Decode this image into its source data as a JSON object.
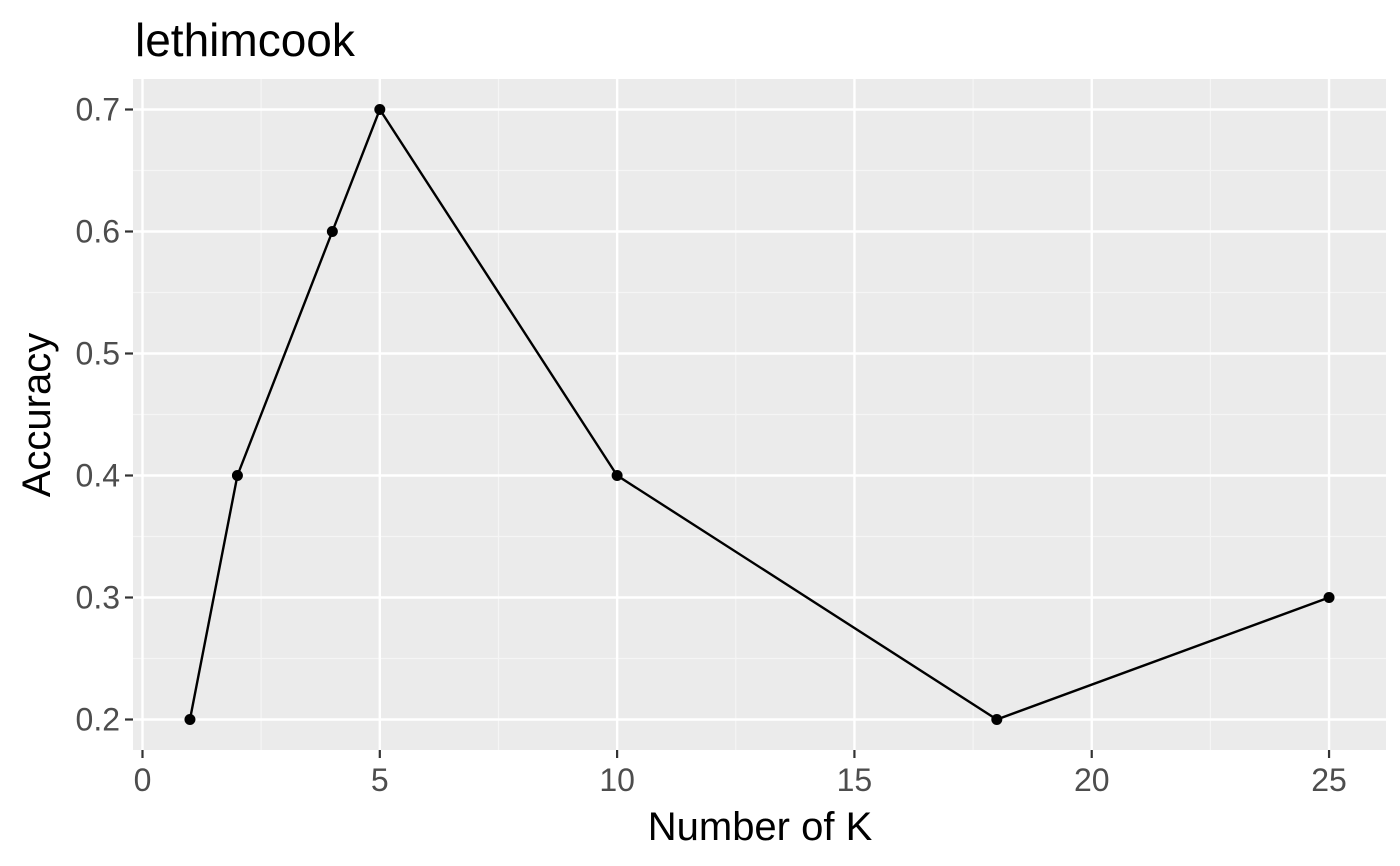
{
  "chart_data": {
    "type": "line",
    "title": "lethimcook",
    "xlabel": "Number of K",
    "ylabel": "Accuracy",
    "x": [
      1,
      2,
      4,
      5,
      10,
      18,
      25
    ],
    "series": [
      {
        "values": [
          0.2,
          0.4,
          0.6,
          0.7,
          0.4,
          0.2,
          0.3
        ]
      }
    ],
    "xlim": [
      -0.2,
      26.2
    ],
    "ylim": [
      0.175,
      0.725
    ],
    "x_ticks": [
      0,
      5,
      10,
      15,
      20,
      25
    ],
    "x_tick_labels": [
      "0",
      "5",
      "10",
      "15",
      "20",
      "25"
    ],
    "y_ticks": [
      0.2,
      0.3,
      0.4,
      0.5,
      0.6,
      0.7
    ],
    "y_tick_labels": [
      "0.2",
      "0.3",
      "0.4",
      "0.5",
      "0.6",
      "0.7"
    ],
    "x_minor_ticks": [
      2.5,
      7.5,
      12.5,
      17.5,
      22.5
    ],
    "y_minor_ticks": [
      0.25,
      0.35,
      0.45,
      0.55,
      0.65
    ],
    "grid": true,
    "legend": "none",
    "colors": {
      "panel_background": "#ebebeb",
      "grid_major": "#ffffff",
      "grid_minor": "#f5f5f5",
      "line": "#000000",
      "point": "#000000",
      "tick_label": "#4d4d4d",
      "axis_tick": "#333333"
    }
  }
}
